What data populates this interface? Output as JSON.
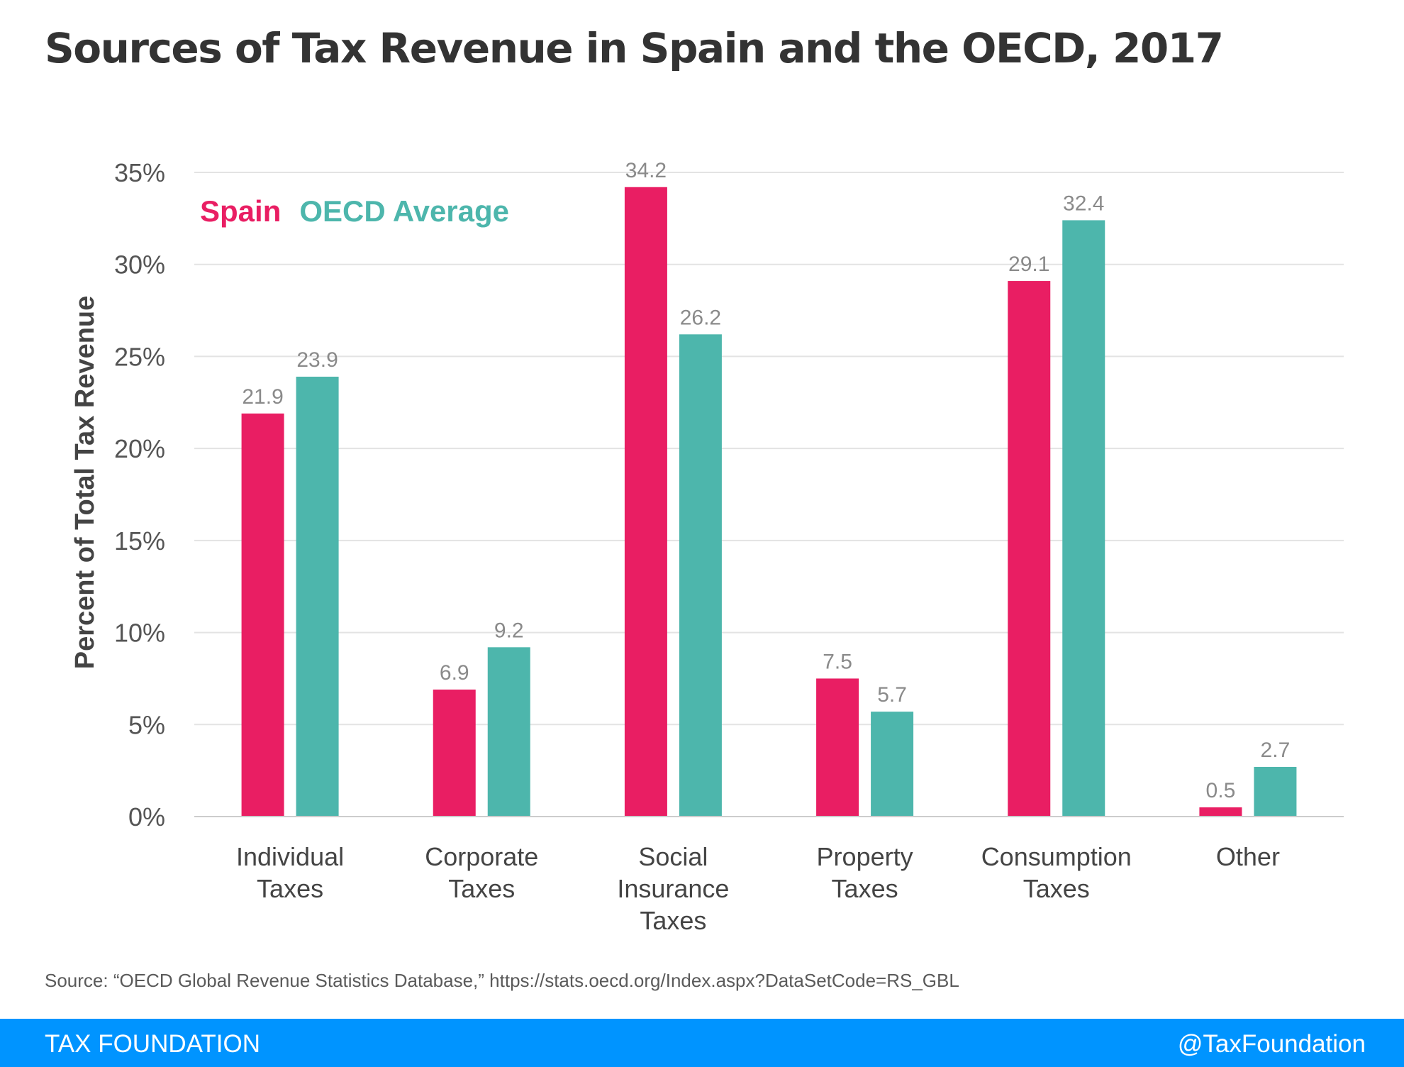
{
  "title": "Sources of Tax Revenue in Spain and the OECD, 2017",
  "source": "Source: “OECD Global Revenue Statistics Database,” https://stats.oecd.org/Index.aspx?DataSetCode=RS_GBL",
  "footer": {
    "brand": "TAX FOUNDATION",
    "handle": "@TaxFoundation",
    "color": "#0094ff"
  },
  "chart_data": {
    "type": "bar",
    "categories": [
      [
        "Individual",
        "Taxes"
      ],
      [
        "Corporate",
        "Taxes"
      ],
      [
        "Social",
        "Insurance",
        "Taxes"
      ],
      [
        "Property",
        "Taxes"
      ],
      [
        "Consumption",
        "Taxes"
      ],
      [
        "Other"
      ]
    ],
    "series": [
      {
        "name": "Spain",
        "color": "#e91e63",
        "values": [
          21.9,
          6.9,
          34.2,
          7.5,
          29.1,
          0.5
        ],
        "labels": [
          "21.9",
          "6.9",
          "34.2",
          "7.5",
          "29.1",
          "0.5"
        ]
      },
      {
        "name": "OECD Average",
        "color": "#4db6ac",
        "values": [
          23.9,
          9.2,
          26.2,
          5.7,
          32.4,
          2.7
        ],
        "labels": [
          "23.9",
          "9.2",
          "26.2",
          "5.7",
          "32.4",
          "2.7"
        ]
      }
    ],
    "ylabel": "Percent of Total Tax Revenue",
    "ylim": [
      0,
      35
    ],
    "yticks": [
      0,
      5,
      10,
      15,
      20,
      25,
      30,
      35
    ],
    "ytick_labels": [
      "0%",
      "5%",
      "10%",
      "15%",
      "20%",
      "25%",
      "30%",
      "35%"
    ],
    "grid": true,
    "legend": "top-left"
  }
}
